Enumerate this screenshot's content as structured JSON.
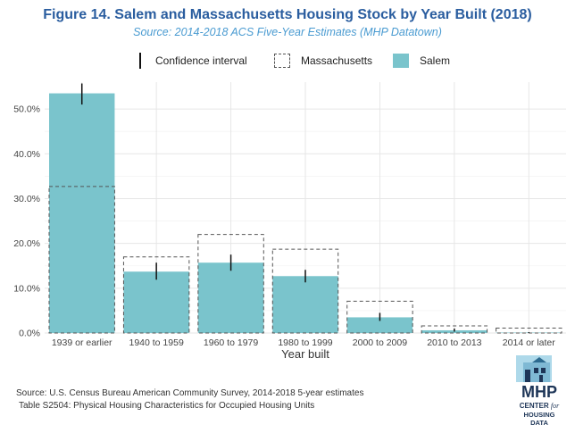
{
  "title": "Figure 14. Salem and Massachusetts Housing Stock by Year Built (2018)",
  "subtitle": "Source: 2014-2018 ACS Five-Year Estimates (MHP Datatown)",
  "legend": {
    "ci": "Confidence interval",
    "massachusetts": "Massachusetts",
    "salem": "Salem"
  },
  "colors": {
    "salem_fill": "#7ac4cc",
    "massachusetts_outline": "#555555",
    "title": "#2a5d9f",
    "subtitle": "#4a9bd1"
  },
  "chart_data": {
    "type": "bar",
    "xlabel": "Year built",
    "ylabel": "",
    "ylim": [
      0,
      0.56
    ],
    "yticks": [
      0,
      0.1,
      0.2,
      0.3,
      0.4,
      0.5
    ],
    "ytick_labels": [
      "0.0%",
      "10.0%",
      "20.0%",
      "30.0%",
      "40.0%",
      "50.0%"
    ],
    "categories": [
      "1939 or earlier",
      "1940 to 1959",
      "1960 to 1979",
      "1980 to 1999",
      "2000 to 2009",
      "2010 to 2013",
      "2014 or later"
    ],
    "series": [
      {
        "name": "Salem",
        "style": "filled",
        "values": [
          0.535,
          0.137,
          0.157,
          0.127,
          0.035,
          0.006,
          0.001
        ],
        "ci_low": [
          0.51,
          0.119,
          0.139,
          0.113,
          0.027,
          0.003,
          0.0
        ],
        "ci_high": [
          0.557,
          0.157,
          0.175,
          0.141,
          0.045,
          0.01,
          0.002
        ]
      },
      {
        "name": "Massachusetts",
        "style": "dashed-outline",
        "values": [
          0.327,
          0.17,
          0.22,
          0.187,
          0.071,
          0.016,
          0.011
        ]
      }
    ],
    "grid": true,
    "legend_position": "top"
  },
  "footer": {
    "line1": "Source: U.S. Census Bureau American Community Survey, 2014-2018 5-year estimates",
    "line2": "Table S2504: Physical Housing Characteristics for Occupied Housing Units"
  },
  "logo": {
    "name": "MHP",
    "line1": "CENTER",
    "line1_suffix": "for",
    "line2": "HOUSING DATA"
  }
}
